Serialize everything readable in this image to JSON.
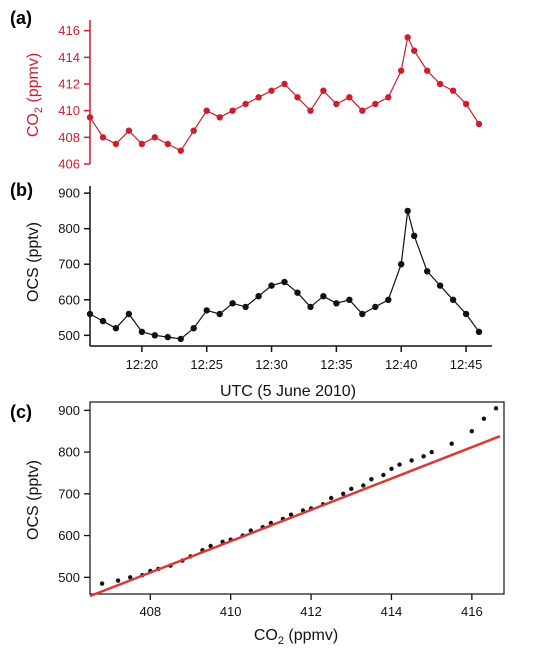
{
  "figure": {
    "xaxis_title": "UTC (5 June 2010)"
  },
  "colors": {
    "red": "#cc1f2e",
    "black": "#111111",
    "fit": "#d83a3a"
  },
  "chart_data": [
    {
      "panel": "(a)",
      "type": "line",
      "ylabel_main": "CO",
      "ylabel_sub": "2",
      "ylabel_unit": " (ppmv)",
      "color": "#cc1f2e",
      "ylim": [
        406,
        416.8
      ],
      "yticks": [
        406,
        408,
        410,
        412,
        414,
        416
      ],
      "xlim": [
        "12:16",
        "12:47"
      ],
      "xticks": [
        "12:20",
        "12:25",
        "12:30",
        "12:35",
        "12:40",
        "12:45"
      ],
      "series": [
        {
          "x": [
            "12:16",
            "12:17",
            "12:18",
            "12:19",
            "12:20",
            "12:21",
            "12:22",
            "12:23",
            "12:24",
            "12:25",
            "12:26",
            "12:27",
            "12:28",
            "12:29",
            "12:30",
            "12:31",
            "12:32",
            "12:33",
            "12:34",
            "12:35",
            "12:36",
            "12:37",
            "12:38",
            "12:39",
            "12:40",
            "12:40.5",
            "12:41",
            "12:42",
            "12:43",
            "12:44",
            "12:45",
            "12:46"
          ],
          "y": [
            409.5,
            408.0,
            407.5,
            408.5,
            407.5,
            408.0,
            407.5,
            407.0,
            408.5,
            410.0,
            409.5,
            410.0,
            410.5,
            411.0,
            411.5,
            412.0,
            411.0,
            410.0,
            411.5,
            410.5,
            411.0,
            410.0,
            410.5,
            411.0,
            413.0,
            415.5,
            414.5,
            413.0,
            412.0,
            411.5,
            410.5,
            409.0
          ]
        }
      ]
    },
    {
      "panel": "(b)",
      "type": "line",
      "ylabel": "OCS (pptv)",
      "color": "#111111",
      "ylim": [
        470,
        920
      ],
      "yticks": [
        500,
        600,
        700,
        800,
        900
      ],
      "xlim": [
        "12:16",
        "12:47"
      ],
      "xticks": [
        "12:20",
        "12:25",
        "12:30",
        "12:35",
        "12:40",
        "12:45"
      ],
      "series": [
        {
          "x": [
            "12:16",
            "12:17",
            "12:18",
            "12:19",
            "12:20",
            "12:21",
            "12:22",
            "12:23",
            "12:24",
            "12:25",
            "12:26",
            "12:27",
            "12:28",
            "12:29",
            "12:30",
            "12:31",
            "12:32",
            "12:33",
            "12:34",
            "12:35",
            "12:36",
            "12:37",
            "12:38",
            "12:39",
            "12:40",
            "12:40.5",
            "12:41",
            "12:42",
            "12:43",
            "12:44",
            "12:45",
            "12:46"
          ],
          "y": [
            560,
            540,
            520,
            560,
            510,
            500,
            495,
            490,
            520,
            570,
            560,
            590,
            580,
            610,
            640,
            650,
            620,
            580,
            610,
            590,
            600,
            560,
            580,
            600,
            700,
            850,
            780,
            680,
            640,
            600,
            560,
            510
          ]
        }
      ]
    },
    {
      "panel": "(c)",
      "type": "scatter",
      "xlabel_main": "CO",
      "xlabel_sub": "2",
      "xlabel_unit": " (ppmv)",
      "ylabel": "OCS (pptv)",
      "xlim": [
        406.5,
        416.8
      ],
      "ylim": [
        460,
        920
      ],
      "xticks": [
        408,
        410,
        412,
        414,
        416
      ],
      "yticks": [
        500,
        600,
        700,
        800,
        900
      ],
      "points": {
        "x": [
          406.8,
          407.2,
          407.5,
          407.8,
          408.0,
          408.2,
          408.5,
          408.8,
          409.0,
          409.3,
          409.5,
          409.8,
          410.0,
          410.3,
          410.5,
          410.8,
          411.0,
          411.3,
          411.5,
          411.8,
          412.0,
          412.3,
          412.5,
          412.8,
          413.0,
          413.3,
          413.5,
          413.8,
          414.0,
          414.2,
          414.5,
          414.8,
          415.0,
          415.5,
          416.0,
          416.3,
          416.6
        ],
        "y": [
          485,
          492,
          500,
          505,
          515,
          520,
          528,
          540,
          550,
          565,
          575,
          585,
          590,
          600,
          612,
          620,
          630,
          640,
          650,
          660,
          665,
          675,
          690,
          700,
          712,
          720,
          735,
          745,
          760,
          770,
          780,
          790,
          800,
          820,
          850,
          880,
          905
        ]
      },
      "fit_line": {
        "x": [
          406.5,
          416.7
        ],
        "y": [
          455,
          838
        ]
      }
    }
  ]
}
